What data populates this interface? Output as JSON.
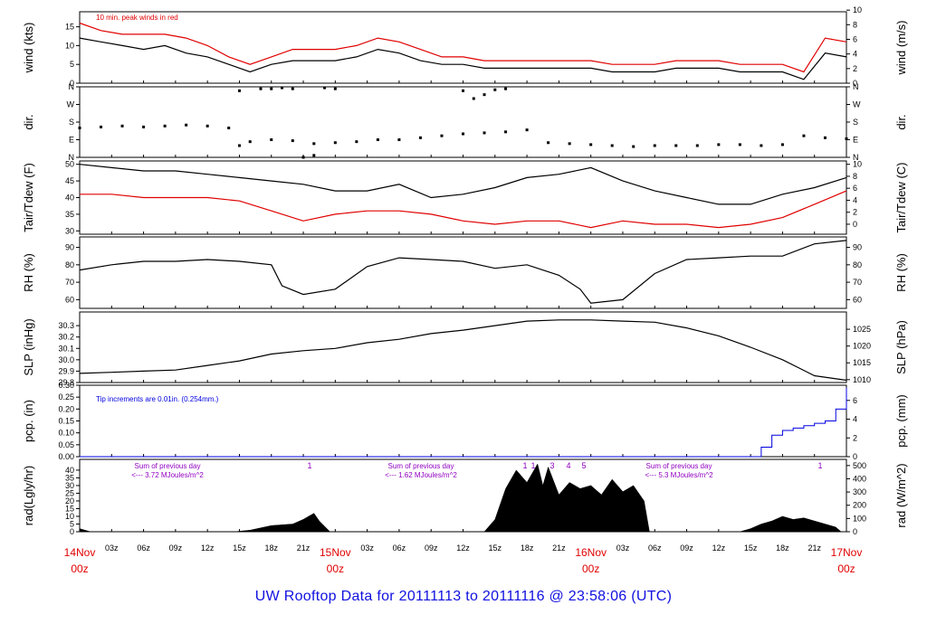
{
  "footer": {
    "title": "UW Rooftop Data for 20111113  to  20111116 @ 23:58:06  (UTC)"
  },
  "colors": {
    "main": "#000000",
    "peak": "#e00000",
    "dewpoint": "#e00000",
    "precip": "#0000e0",
    "radnote": "#9000c0",
    "date": "#e00000",
    "footer": "#1010e0"
  },
  "chart_data": {
    "type": "line",
    "x_axis": {
      "hour_ticks": [
        "03z",
        "06z",
        "09z",
        "12z",
        "15z",
        "18z",
        "21z",
        "03z",
        "06z",
        "09z",
        "12z",
        "15z",
        "18z",
        "21z",
        "03z",
        "06z",
        "09z",
        "12z",
        "15z",
        "18z",
        "21z"
      ],
      "day_labels": [
        {
          "day": "14Nov",
          "time": "00z"
        },
        {
          "day": "15Nov",
          "time": "00z"
        },
        {
          "day": "16Nov",
          "time": "00z"
        },
        {
          "day": "17Nov",
          "time": "00z"
        }
      ],
      "range_hours": [
        0,
        72
      ]
    },
    "panels": [
      {
        "id": "wind",
        "ylabel_left": "wind (kts)",
        "ylabel_right": "wind (m/s)",
        "ylim": [
          0,
          19
        ],
        "left_ticks": [
          0,
          5,
          10,
          15
        ],
        "right_ticks": [
          0,
          2,
          4,
          6,
          8,
          10
        ],
        "note": "10 min. peak winds in red",
        "series": [
          {
            "name": "wind",
            "color": "#000000",
            "x": [
              0,
              2,
              4,
              6,
              8,
              10,
              12,
              14,
              16,
              18,
              20,
              22,
              24,
              26,
              28,
              30,
              32,
              34,
              36,
              38,
              40,
              42,
              44,
              46,
              48,
              50,
              52,
              54,
              56,
              58,
              60,
              62,
              64,
              66,
              68,
              70,
              72
            ],
            "y": [
              12,
              11,
              10,
              9,
              10,
              8,
              7,
              5,
              3,
              5,
              6,
              6,
              6,
              7,
              9,
              8,
              6,
              5,
              5,
              4,
              4,
              4,
              4,
              4,
              4,
              3,
              3,
              3,
              4,
              4,
              4,
              3,
              3,
              3,
              1,
              8,
              7
            ]
          },
          {
            "name": "peak",
            "color": "#e00000",
            "x": [
              0,
              2,
              4,
              6,
              8,
              10,
              12,
              14,
              16,
              18,
              20,
              22,
              24,
              26,
              28,
              30,
              32,
              34,
              36,
              38,
              40,
              42,
              44,
              46,
              48,
              50,
              52,
              54,
              56,
              58,
              60,
              62,
              64,
              66,
              68,
              70,
              72
            ],
            "y": [
              16,
              14,
              13,
              13,
              13,
              12,
              10,
              7,
              5,
              7,
              9,
              9,
              9,
              10,
              12,
              11,
              9,
              7,
              7,
              6,
              6,
              6,
              6,
              6,
              6,
              5,
              5,
              5,
              6,
              6,
              6,
              5,
              5,
              5,
              3,
              12,
              11
            ]
          }
        ]
      },
      {
        "id": "dir",
        "ylabel_left": "dir.",
        "ylabel_right": "dir.",
        "ylim": [
          0,
          360
        ],
        "left_ticks": [
          "N",
          "E",
          "S",
          "W",
          "N"
        ],
        "right_ticks": [
          "N",
          "E",
          "S",
          "W",
          "N"
        ],
        "series": [
          {
            "name": "direction",
            "color": "#000000",
            "style": "dots",
            "x": [
              0,
              2,
              4,
              6,
              8,
              10,
              12,
              14,
              15,
              16,
              18,
              20,
              22,
              24,
              26,
              28,
              30,
              32,
              34,
              36,
              38,
              40,
              42,
              44,
              46,
              48,
              50,
              52,
              54,
              56,
              58,
              60,
              62,
              64,
              66,
              68,
              70,
              72
            ],
            "y": [
              150,
              155,
              160,
              155,
              160,
              165,
              160,
              150,
              60,
              80,
              90,
              85,
              70,
              75,
              80,
              90,
              90,
              100,
              110,
              120,
              125,
              130,
              140,
              75,
              70,
              65,
              60,
              55,
              60,
              60,
              60,
              65,
              65,
              60,
              65,
              110,
              100,
              95
            ]
          },
          {
            "name": "direction-north",
            "color": "#000000",
            "style": "dots",
            "x": [
              15,
              17,
              18,
              19,
              20,
              21,
              22,
              23,
              24,
              36,
              37,
              38,
              39,
              40
            ],
            "y": [
              340,
              350,
              350,
              355,
              350,
              0,
              10,
              355,
              350,
              340,
              300,
              320,
              345,
              350
            ]
          }
        ]
      },
      {
        "id": "temp",
        "ylabel_left": "Tair/Tdew (F)",
        "ylabel_right": "Tair/Tdew (C)",
        "ylim": [
          29,
          51
        ],
        "left_ticks": [
          30,
          35,
          40,
          45,
          50
        ],
        "right_ticks": [
          0,
          2,
          4,
          6,
          8,
          10
        ],
        "series": [
          {
            "name": "Tair",
            "color": "#000000",
            "x": [
              0,
              3,
              6,
              9,
              12,
              15,
              18,
              21,
              24,
              27,
              30,
              33,
              36,
              39,
              42,
              45,
              48,
              51,
              54,
              57,
              60,
              63,
              66,
              69,
              72
            ],
            "y": [
              50,
              49,
              48,
              48,
              47,
              46,
              45,
              44,
              42,
              42,
              44,
              40,
              41,
              43,
              46,
              47,
              49,
              45,
              42,
              40,
              38,
              38,
              41,
              43,
              46
            ]
          },
          {
            "name": "Tdew",
            "color": "#e00000",
            "x": [
              0,
              3,
              6,
              9,
              12,
              15,
              18,
              21,
              24,
              27,
              30,
              33,
              36,
              39,
              42,
              45,
              48,
              51,
              54,
              57,
              60,
              63,
              66,
              69,
              72
            ],
            "y": [
              41,
              41,
              40,
              40,
              40,
              39,
              36,
              33,
              35,
              36,
              36,
              35,
              33,
              32,
              33,
              33,
              31,
              33,
              32,
              32,
              31,
              32,
              34,
              38,
              42
            ]
          }
        ]
      },
      {
        "id": "rh",
        "ylabel_left": "RH (%)",
        "ylabel_right": "RH (%)",
        "ylim": [
          55,
          96
        ],
        "left_ticks": [
          60,
          70,
          80,
          90
        ],
        "right_ticks": [
          60,
          70,
          80,
          90
        ],
        "series": [
          {
            "name": "RH",
            "color": "#000000",
            "x": [
              0,
              3,
              6,
              9,
              12,
              15,
              18,
              19,
              21,
              24,
              27,
              30,
              33,
              36,
              39,
              42,
              45,
              47,
              48,
              51,
              54,
              57,
              60,
              63,
              66,
              69,
              72
            ],
            "y": [
              77,
              80,
              82,
              82,
              83,
              82,
              80,
              68,
              63,
              66,
              79,
              84,
              83,
              82,
              78,
              80,
              74,
              66,
              58,
              60,
              75,
              83,
              84,
              85,
              85,
              92,
              94
            ]
          }
        ]
      },
      {
        "id": "slp",
        "ylabel_left": "SLP (inHg)",
        "ylabel_right": "SLP (hPa)",
        "ylim": [
          29.8,
          30.42
        ],
        "left_ticks": [
          29.8,
          29.9,
          30.0,
          30.1,
          30.2,
          30.3
        ],
        "right_ticks": [
          1010,
          1015,
          1020,
          1025
        ],
        "series": [
          {
            "name": "SLP",
            "color": "#000000",
            "x": [
              0,
              3,
              6,
              9,
              12,
              15,
              18,
              21,
              24,
              27,
              30,
              33,
              36,
              39,
              42,
              45,
              48,
              51,
              54,
              57,
              60,
              63,
              66,
              69,
              72
            ],
            "y": [
              29.88,
              29.89,
              29.9,
              29.91,
              29.95,
              29.99,
              30.05,
              30.08,
              30.1,
              30.15,
              30.18,
              30.23,
              30.26,
              30.3,
              30.34,
              30.35,
              30.35,
              30.34,
              30.33,
              30.28,
              30.21,
              30.11,
              30.0,
              29.86,
              29.82
            ]
          }
        ]
      },
      {
        "id": "pcp",
        "ylabel_left": "pcp. (in)",
        "ylabel_right": "pcp. (mm)",
        "ylim": [
          0,
          0.3
        ],
        "left_ticks": [
          0.0,
          0.05,
          0.1,
          0.15,
          0.2,
          0.25,
          0.3
        ],
        "right_ticks": [
          0,
          2,
          4,
          6
        ],
        "note": "Tip increments are 0.01in. (0.254mm.)",
        "series": [
          {
            "name": "precip",
            "color": "#0000e0",
            "x": [
              0,
              62.5,
              64,
              65,
              66,
              67,
              68,
              69,
              70,
              71,
              72
            ],
            "y": [
              0,
              0,
              0.04,
              0.09,
              0.11,
              0.12,
              0.13,
              0.14,
              0.15,
              0.2,
              0.29
            ]
          }
        ]
      },
      {
        "id": "rad",
        "ylabel_left": "rad(Lgly/hr)",
        "ylabel_right": "rad (W/m^2)",
        "ylim": [
          0,
          47
        ],
        "left_ticks": [
          0,
          5,
          10,
          15,
          20,
          25,
          30,
          35,
          40
        ],
        "right_ticks": [
          0,
          100,
          200,
          300,
          400,
          500
        ],
        "notes": [
          {
            "line1": "Sum of previous day",
            "line2": "<--- 3.72 MJoules/m^2"
          },
          {
            "line1": "Sum of previous day",
            "line2": "<--- 1.62 MJoules/m^2"
          },
          {
            "line1": "Sum of previous day",
            "line2": "<--- 5.3 MJoules/m^2"
          }
        ],
        "markers": [
          "1",
          "1",
          "1",
          "3",
          "4",
          "5",
          "1",
          "1"
        ],
        "series": [
          {
            "name": "radiation",
            "color": "#000000",
            "style": "area",
            "x": [
              0,
              1,
              14.5,
              16,
              18,
              20,
              21,
              22,
              22.5,
              23.5,
              38,
              39,
              40,
              41,
              42,
              43,
              43.5,
              44,
              45,
              46,
              47,
              48,
              49,
              50,
              51,
              52,
              53,
              53.5,
              62,
              63,
              64,
              65,
              66,
              67,
              68,
              69,
              70,
              71,
              71.5
            ],
            "y": [
              2,
              0,
              0,
              1,
              4,
              5,
              8,
              12,
              7,
              0,
              0,
              8,
              28,
              40,
              32,
              44,
              30,
              42,
              24,
              32,
              28,
              30,
              24,
              34,
              26,
              30,
              20,
              0,
              0,
              2,
              5,
              7,
              10,
              8,
              9,
              7,
              5,
              3,
              0
            ]
          }
        ]
      }
    ]
  }
}
